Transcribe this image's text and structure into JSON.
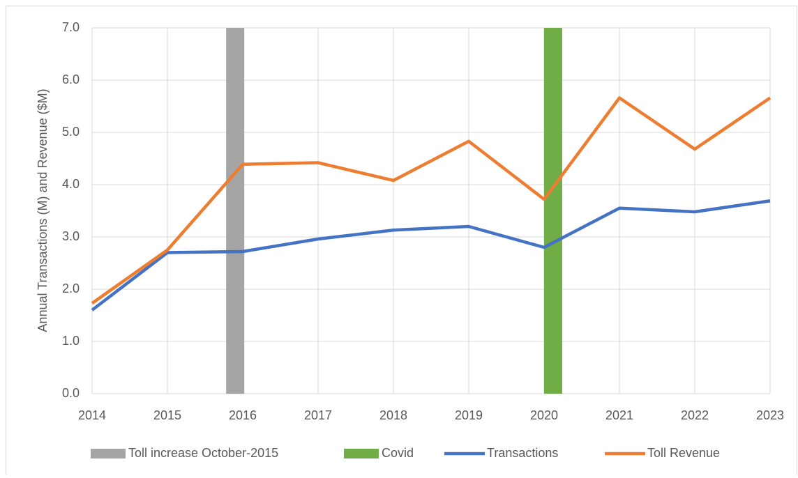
{
  "chart_data": {
    "type": "line",
    "y_label": "Annual Transactions (M) and Revenue ($M)",
    "x": [
      2014,
      2015,
      2016,
      2017,
      2018,
      2019,
      2020,
      2021,
      2022,
      2023
    ],
    "xlim": [
      2014,
      2023
    ],
    "xticks": [
      2014,
      2015,
      2016,
      2017,
      2018,
      2019,
      2020,
      2021,
      2022,
      2023
    ],
    "ylim": [
      0,
      7
    ],
    "yticks": [
      {
        "value": 0,
        "label": "0.0"
      },
      {
        "value": 1,
        "label": "1.0"
      },
      {
        "value": 2,
        "label": "2.0"
      },
      {
        "value": 3,
        "label": "3.0"
      },
      {
        "value": 4,
        "label": "4.0"
      },
      {
        "value": 5,
        "label": "5.0"
      },
      {
        "value": 6,
        "label": "6.0"
      },
      {
        "value": 7,
        "label": "7.0"
      }
    ],
    "grid": true,
    "legend": "bottom",
    "series": [
      {
        "name": "Toll increase October-2015",
        "type": "bar",
        "color": "#a5a5a5",
        "x": [
          2015.9
        ],
        "values": [
          7
        ]
      },
      {
        "name": "Covid",
        "type": "bar",
        "color": "#70ad47",
        "x": [
          2020.12
        ],
        "values": [
          7
        ]
      },
      {
        "name": "Transactions",
        "type": "line",
        "color": "#4472c4",
        "values": [
          1.6,
          2.7,
          2.72,
          2.96,
          3.13,
          3.2,
          2.8,
          3.55,
          3.48,
          3.69
        ]
      },
      {
        "name": "Toll Revenue",
        "type": "line",
        "color": "#ed7d31",
        "values": [
          1.73,
          2.75,
          4.39,
          4.42,
          4.08,
          4.83,
          3.72,
          5.66,
          4.68,
          5.66
        ]
      }
    ]
  }
}
